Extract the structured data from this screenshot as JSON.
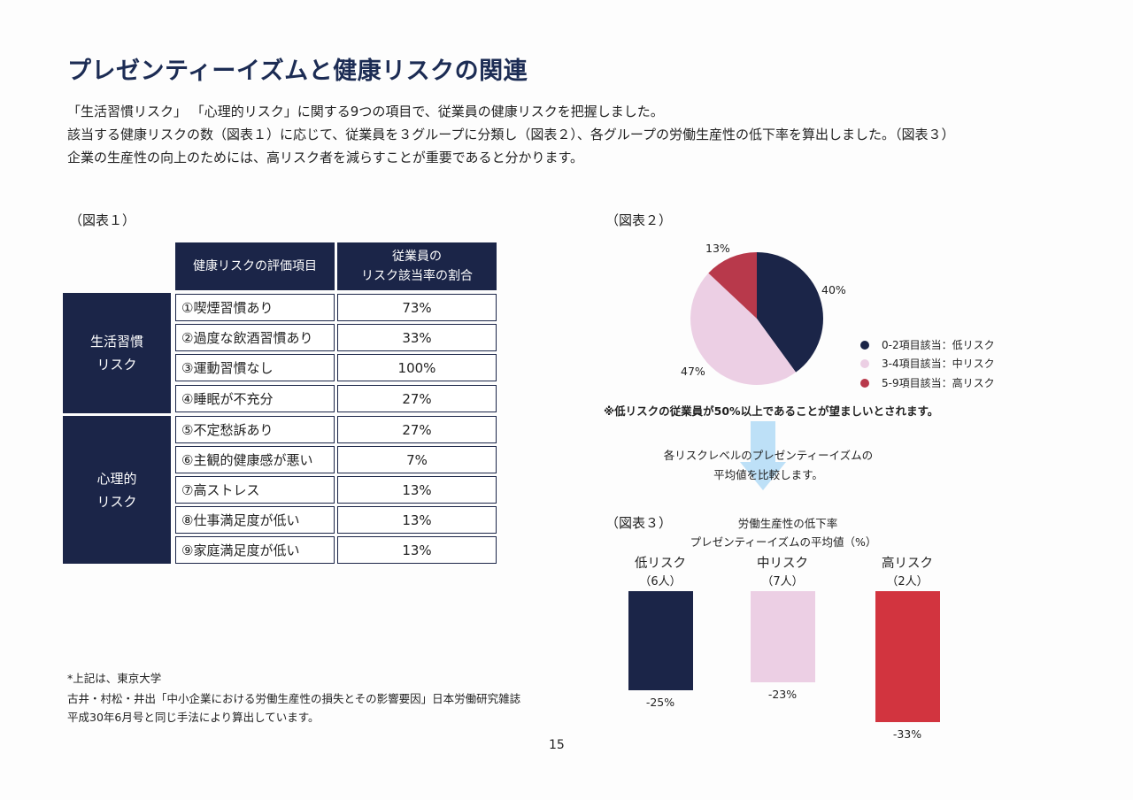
{
  "title": "プレゼンティーイズムと健康リスクの関連",
  "intro": [
    "「生活習慣リスク」 「心理的リスク」に関する9つの項目で、従業員の健康リスクを把握しました。",
    "該当する健康リスクの数（図表１）に応じて、従業員を３グループに分類し（図表２）、各グループの労働生産性の低下率を算出しました。（図表３）",
    "企業の生産性の向上のためには、高リスク者を減らすことが重要であると分かります。"
  ],
  "fig1": {
    "label": "（図表１）",
    "header_item": "健康リスクの評価項目",
    "header_rate_line1": "従業員の",
    "header_rate_line2": "リスク該当率の割合",
    "cat1_line1": "生活習慣",
    "cat1_line2": "リスク",
    "cat2_line1": "心理的",
    "cat2_line2": "リスク",
    "rows": [
      {
        "item": "①喫煙習慣あり",
        "pct": "73%"
      },
      {
        "item": "②過度な飲酒習慣あり",
        "pct": "33%"
      },
      {
        "item": "③運動習慣なし",
        "pct": "100%"
      },
      {
        "item": "④睡眠が不充分",
        "pct": "27%"
      },
      {
        "item": "⑤不定愁訴あり",
        "pct": "27%"
      },
      {
        "item": "⑥主観的健康感が悪い",
        "pct": "7%"
      },
      {
        "item": "⑦高ストレス",
        "pct": "13%"
      },
      {
        "item": "⑧仕事満足度が低い",
        "pct": "13%"
      },
      {
        "item": "⑨家庭満足度が低い",
        "pct": "13%"
      }
    ]
  },
  "fig2": {
    "label": "（図表２）",
    "note": "※低リスクの従業員が50%以上であることが望ましいとされます。",
    "arrow_text_line1": "各リスクレベルのプレゼンティーイズムの",
    "arrow_text_line2": "平均値を比較します。"
  },
  "fig3": {
    "label": "（図表３）",
    "title_line1": "労働生産性の低下率",
    "title_line2": "プレゼンティーイズムの平均値（%）"
  },
  "chart_data": [
    {
      "type": "pie",
      "slices": [
        {
          "name": "0-2項目該当：低リスク",
          "value": 40,
          "label": "40%",
          "color": "#1b2548"
        },
        {
          "name": "3-4項目該当：中リスク",
          "value": 47,
          "label": "47%",
          "color": "#eccfe4"
        },
        {
          "name": "5-9項目該当：高リスク",
          "value": 13,
          "label": "13%",
          "color": "#b8394b"
        }
      ],
      "legend_position": "right"
    },
    {
      "type": "bar",
      "categories": [
        "低リスク",
        "中リスク",
        "高リスク"
      ],
      "counts": [
        "（6人）",
        "（7人）",
        "（2人）"
      ],
      "values": [
        -25,
        -23,
        -33
      ],
      "labels": [
        "-25%",
        "-23%",
        "-33%"
      ],
      "colors": [
        "#1b2548",
        "#eccfe4",
        "#d2343f"
      ]
    }
  ],
  "footnote": [
    "*上記は、東京大学",
    "古井・村松・井出「中小企業における労働生産性の損失とその影響要因」日本労働研究雑誌",
    "平成30年6月号と同じ手法により算出しています。"
  ],
  "page_number": "15"
}
